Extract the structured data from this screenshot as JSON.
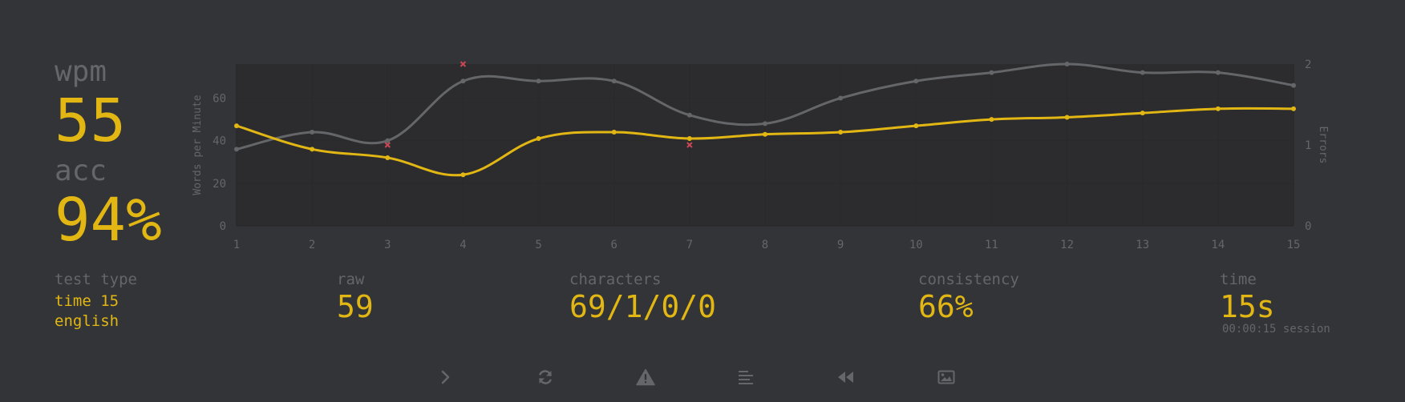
{
  "stats": {
    "wpm_label": "wpm",
    "wpm_value": "55",
    "acc_label": "acc",
    "acc_value": "94%"
  },
  "test_type": {
    "label": "test type",
    "mode": "time 15",
    "language": "english"
  },
  "raw": {
    "label": "raw",
    "value": "59"
  },
  "characters": {
    "label": "characters",
    "value": "69/1/0/0"
  },
  "consistency": {
    "label": "consistency",
    "value": "66%"
  },
  "time": {
    "label": "time",
    "value": "15s",
    "session": "00:00:15 session"
  },
  "buttons": [
    {
      "name": "next-test-button",
      "icon": "chevron-right-icon"
    },
    {
      "name": "restart-test-button",
      "icon": "refresh-icon"
    },
    {
      "name": "report-button",
      "icon": "warning-icon"
    },
    {
      "name": "word-history-button",
      "icon": "align-left-icon"
    },
    {
      "name": "replay-button",
      "icon": "backward-icon"
    },
    {
      "name": "screenshot-button",
      "icon": "image-icon"
    }
  ],
  "colors": {
    "background": "#323437",
    "plot_area": "#2c2c2e",
    "main": "#e2b714",
    "sub": "#646669",
    "raw_line": "#646669",
    "error": "#ca4754"
  },
  "chart_data": {
    "type": "line",
    "x": [
      1,
      2,
      3,
      4,
      5,
      6,
      7,
      8,
      9,
      10,
      11,
      12,
      13,
      14,
      15
    ],
    "ylabel": "Words per Minute",
    "y2label": "Errors",
    "ylim": [
      0,
      76
    ],
    "y_ticks": [
      0,
      20,
      40,
      60
    ],
    "y2lim": [
      0,
      2
    ],
    "y2_ticks": [
      0,
      1,
      2
    ],
    "grid": true,
    "series": [
      {
        "key": "raw",
        "color": "#646669",
        "values": [
          36,
          44,
          40,
          68,
          68,
          68,
          52,
          48,
          60,
          68,
          72,
          76,
          72,
          72,
          66
        ]
      },
      {
        "key": "wpm",
        "color": "#e2b714",
        "values": [
          47,
          36,
          32,
          24,
          41,
          44,
          41,
          43,
          44,
          47,
          50,
          51,
          53,
          55,
          55
        ]
      }
    ],
    "errors": [
      {
        "x": 3,
        "value": 1
      },
      {
        "x": 4,
        "value": 2
      },
      {
        "x": 7,
        "value": 1
      }
    ]
  }
}
